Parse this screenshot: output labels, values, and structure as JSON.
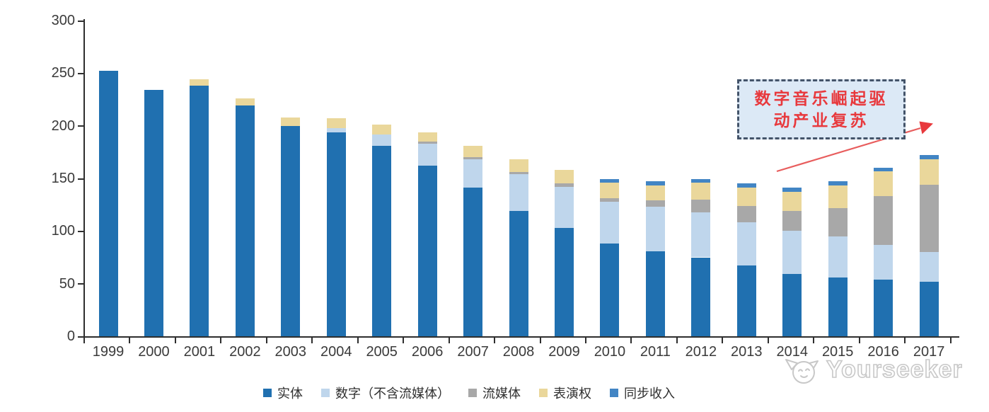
{
  "chart_data": {
    "type": "bar",
    "subtype": "stacked",
    "title": "",
    "xlabel": "",
    "ylabel": "",
    "ylim": [
      0,
      300
    ],
    "yticks": [
      0,
      50,
      100,
      150,
      200,
      250,
      300
    ],
    "grid": false,
    "legend_position": "bottom",
    "categories": [
      "1999",
      "2000",
      "2001",
      "2002",
      "2003",
      "2004",
      "2005",
      "2006",
      "2007",
      "2008",
      "2009",
      "2010",
      "2011",
      "2012",
      "2013",
      "2014",
      "2015",
      "2016",
      "2017"
    ],
    "series": [
      {
        "name": "实体",
        "color": "#2070b0",
        "values": [
          252,
          234,
          238,
          219,
          200,
          194,
          181,
          162,
          141,
          119,
          103,
          88,
          81,
          75,
          67,
          59,
          56,
          54,
          52
        ]
      },
      {
        "name": "数字（不含流媒体）",
        "color": "#bfd6ec",
        "values": [
          0,
          0,
          0,
          0,
          0,
          4,
          11,
          21,
          27,
          35,
          39,
          40,
          42,
          43,
          41,
          41,
          39,
          33,
          28
        ]
      },
      {
        "name": "流媒体",
        "color": "#a8a8a8",
        "values": [
          0,
          0,
          0,
          0,
          0,
          0,
          0,
          2,
          2,
          2,
          3,
          3,
          6,
          12,
          16,
          19,
          27,
          46,
          64
        ]
      },
      {
        "name": "表演权",
        "color": "#ead79b",
        "values": [
          0,
          0,
          6,
          7,
          8,
          9,
          9,
          9,
          11,
          12,
          13,
          15,
          14,
          16,
          17,
          18,
          21,
          24,
          24
        ]
      },
      {
        "name": "同步收入",
        "color": "#4285c4",
        "values": [
          0,
          0,
          0,
          0,
          0,
          0,
          0,
          0,
          0,
          0,
          0,
          3,
          4,
          3,
          4,
          4,
          4,
          3,
          4
        ]
      }
    ]
  },
  "annotation": {
    "line1": "数字音乐崛起驱",
    "line2": "动产业复苏",
    "text_color": "#e8393d",
    "box_fill": "#dce9f6",
    "border_color": "#44546a",
    "arrow_color": "#e85d5d",
    "arrowhead_color": "#e8393d"
  },
  "watermark": {
    "text": "Yourseeker",
    "color": "#c8c8c8",
    "logo": "cat-face-icon"
  }
}
